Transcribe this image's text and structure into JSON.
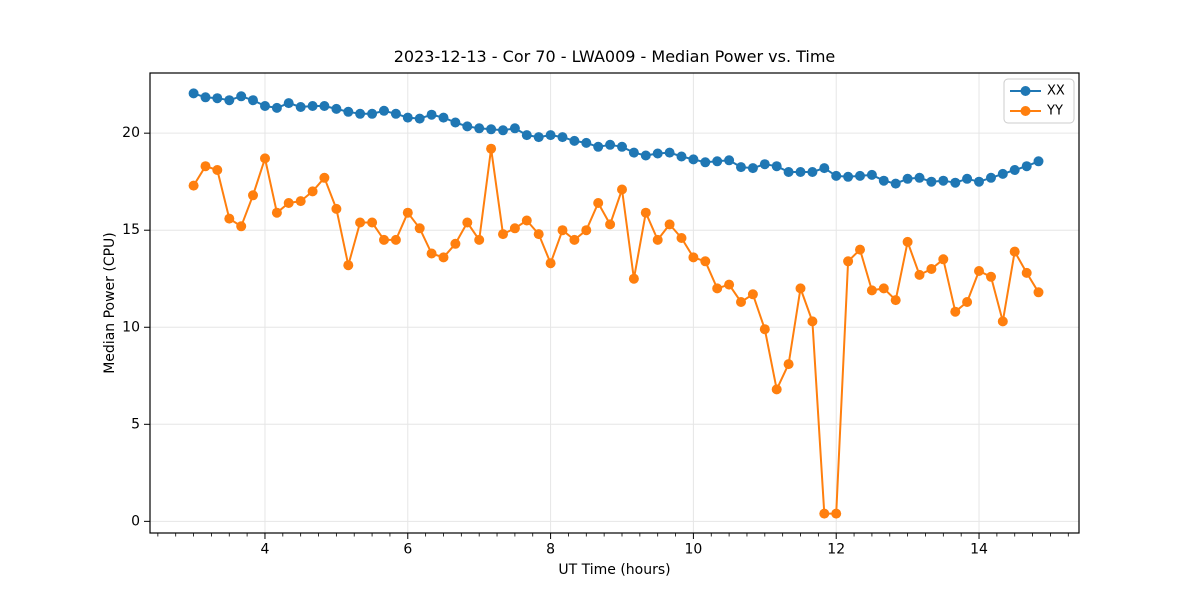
{
  "chart_data": {
    "type": "line",
    "title": "2023-12-13 - Cor 70 - LWA009 - Median Power vs. Time",
    "xlabel": "UT Time (hours)",
    "ylabel": "Median Power (CPU)",
    "xlim": [
      2.39,
      15.4
    ],
    "ylim": [
      -0.6,
      23.1
    ],
    "xticks": [
      4,
      6,
      8,
      10,
      12,
      14
    ],
    "yticks": [
      0,
      5,
      10,
      15,
      20
    ],
    "minor_xtick_step": 0.25,
    "grid": true,
    "legend_position": "top-right",
    "colors": {
      "grid": "#e6e6e6",
      "axis": "#000000",
      "background": "#ffffff",
      "legend_border": "#cccccc"
    },
    "x": [
      3.0,
      3.167,
      3.333,
      3.5,
      3.667,
      3.833,
      4.0,
      4.167,
      4.333,
      4.5,
      4.667,
      4.833,
      5.0,
      5.167,
      5.333,
      5.5,
      5.667,
      5.833,
      6.0,
      6.167,
      6.333,
      6.5,
      6.667,
      6.833,
      7.0,
      7.167,
      7.333,
      7.5,
      7.667,
      7.833,
      8.0,
      8.167,
      8.333,
      8.5,
      8.667,
      8.833,
      9.0,
      9.167,
      9.333,
      9.5,
      9.667,
      9.833,
      10.0,
      10.167,
      10.333,
      10.5,
      10.667,
      10.833,
      11.0,
      11.167,
      11.333,
      11.5,
      11.667,
      11.833,
      12.0,
      12.167,
      12.333,
      12.5,
      12.667,
      12.833,
      13.0,
      13.167,
      13.333,
      13.5,
      13.667,
      13.833,
      14.0,
      14.167,
      14.333,
      14.5,
      14.667,
      14.833
    ],
    "series": [
      {
        "name": "XX",
        "color": "#1f77b4",
        "values": [
          22.05,
          21.85,
          21.8,
          21.7,
          21.9,
          21.7,
          21.4,
          21.3,
          21.55,
          21.35,
          21.4,
          21.4,
          21.25,
          21.1,
          21.0,
          21.0,
          21.15,
          21.0,
          20.8,
          20.75,
          20.95,
          20.8,
          20.55,
          20.35,
          20.25,
          20.2,
          20.15,
          20.25,
          19.9,
          19.8,
          19.9,
          19.8,
          19.6,
          19.5,
          19.3,
          19.4,
          19.3,
          19.0,
          18.85,
          18.95,
          19.0,
          18.8,
          18.65,
          18.5,
          18.55,
          18.6,
          18.25,
          18.2,
          18.4,
          18.3,
          18.0,
          18.0,
          18.0,
          18.2,
          17.8,
          17.75,
          17.8,
          17.85,
          17.55,
          17.4,
          17.65,
          17.7,
          17.5,
          17.55,
          17.45,
          17.65,
          17.5,
          17.7,
          17.9,
          18.1,
          18.3,
          18.55
        ]
      },
      {
        "name": "YY",
        "color": "#ff7f0e",
        "values": [
          17.3,
          18.3,
          18.1,
          15.6,
          15.2,
          16.8,
          18.7,
          15.9,
          16.4,
          16.5,
          17.0,
          17.7,
          16.1,
          13.2,
          15.4,
          15.4,
          14.5,
          14.5,
          15.9,
          15.1,
          13.8,
          13.6,
          14.3,
          15.4,
          14.5,
          19.2,
          14.8,
          15.1,
          15.5,
          14.8,
          13.3,
          15.0,
          14.5,
          15.0,
          16.4,
          15.3,
          17.1,
          12.5,
          15.9,
          14.5,
          15.3,
          14.6,
          13.6,
          13.4,
          12.0,
          12.2,
          11.3,
          11.7,
          9.9,
          6.8,
          8.1,
          12.0,
          10.3,
          0.4,
          0.4,
          13.4,
          14.0,
          11.9,
          12.0,
          11.4,
          14.4,
          12.7,
          13.0,
          13.5,
          10.8,
          11.3,
          12.9,
          12.6,
          10.3,
          13.9,
          12.8,
          11.8
        ]
      }
    ]
  }
}
